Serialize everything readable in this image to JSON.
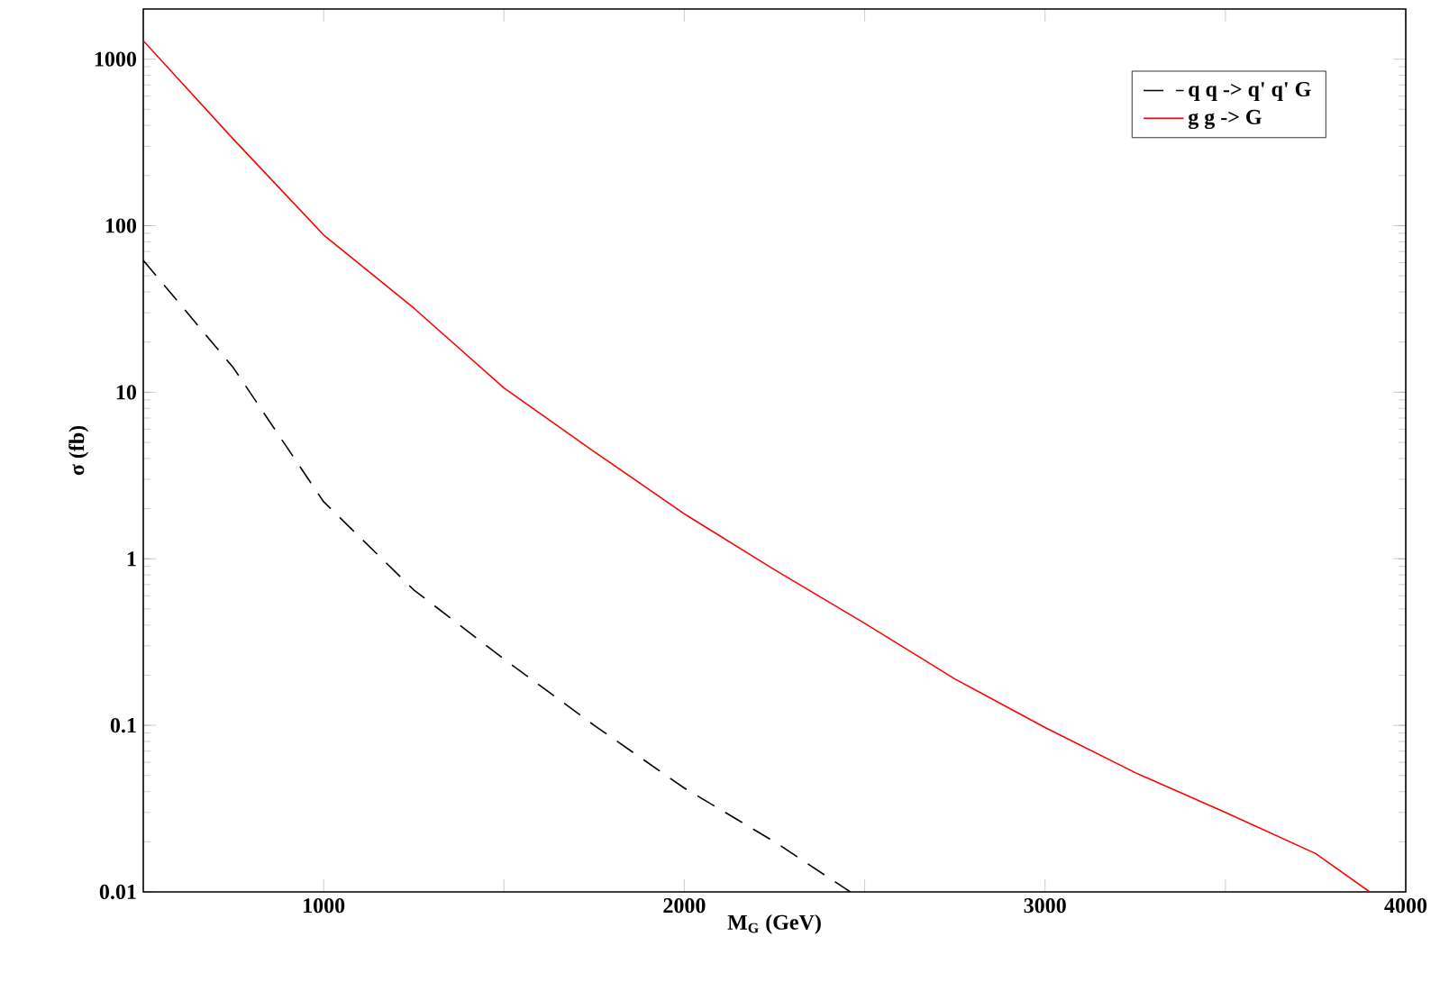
{
  "chart_data": {
    "type": "line",
    "xlabel": "M$_{G}$ (GeV)",
    "ylabel": "σ (fb)",
    "log": "y",
    "legend": "top right",
    "xlim": [
      500,
      4000
    ],
    "ylim": [
      0.01,
      2000
    ],
    "xticks": [
      {
        "value": 1000,
        "label": "1000"
      },
      {
        "value": 1500,
        "label": null
      },
      {
        "value": 2000,
        "label": "2000"
      },
      {
        "value": 2500,
        "label": null
      },
      {
        "value": 3000,
        "label": "3000"
      },
      {
        "value": 3500,
        "label": null
      },
      {
        "value": 4000,
        "label": "4000"
      }
    ],
    "yticks": [
      0.01,
      0.1,
      1,
      10,
      100,
      1000
    ],
    "series": [
      {
        "name": "q q -> q' q' G",
        "color": "#000000",
        "line_style": "dashed",
        "x": [
          500,
          750,
          1000,
          1250,
          1500,
          1750,
          2000,
          2250,
          2460
        ],
        "values": [
          62,
          14,
          2.2,
          0.65,
          0.25,
          0.1,
          0.042,
          0.02,
          0.01
        ]
      },
      {
        "name": "g g -> G",
        "color": "#ff0000",
        "line_style": "solid",
        "x": [
          500,
          750,
          1000,
          1250,
          1500,
          1750,
          2000,
          2250,
          2500,
          2750,
          3000,
          3250,
          3500,
          3750,
          3900
        ],
        "values": [
          1290,
          330,
          88,
          32,
          10.6,
          4.4,
          1.86,
          0.86,
          0.41,
          0.19,
          0.097,
          0.052,
          0.03,
          0.017,
          0.01
        ]
      }
    ]
  }
}
